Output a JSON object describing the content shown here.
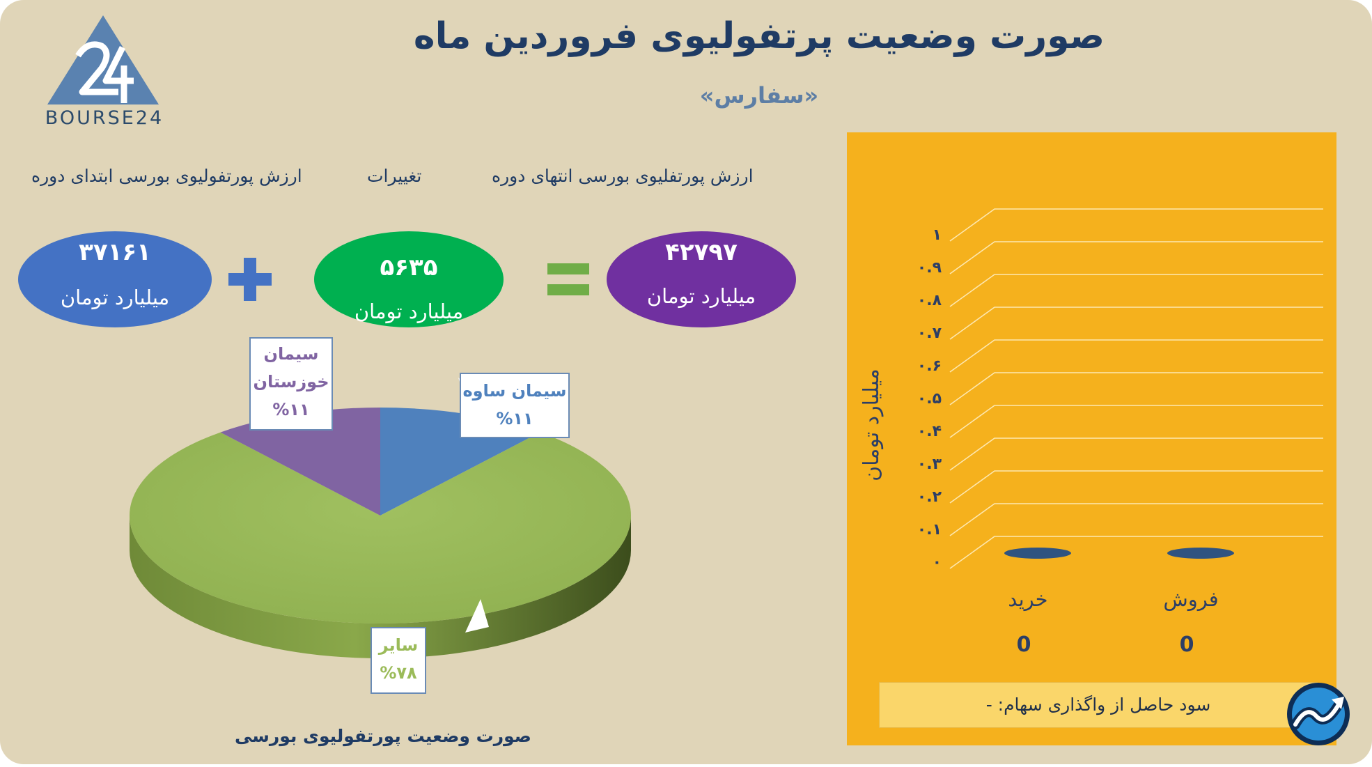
{
  "header": {
    "title": "صورت وضعیت پرتفولیوی فروردین ماه",
    "subtitle": "«سفارس»",
    "logo_text": "BOURSE24"
  },
  "summary": {
    "end_label": "ارزش پورتفلیوی بورسی انتهای دوره",
    "change_label": "تغییرات",
    "start_label": "ارزش پورتفولیوی بورسی ابتدای دوره",
    "end_value": "۴۲۷۹۷",
    "end_unit": "میلیارد تومان",
    "change_value": "۵۶۳۵",
    "change_unit": "میلیارد تومان",
    "start_value": "۳۷۱۶۱",
    "start_unit": "میلیارد تومان"
  },
  "colors": {
    "background": "#e0d5b8",
    "title": "#1f3b64",
    "start_ellipse": "#4472c4",
    "change_ellipse": "#00b050",
    "end_ellipse": "#7030a0",
    "plus_sign": "#4472c4",
    "equals_sign": "#70ad47",
    "panel": "#f5b11d",
    "pie_other": "#9bbb59",
    "pie_saveh": "#4f81bd",
    "pie_khuzestan": "#8064a2"
  },
  "pie_callouts": [
    {
      "line1": "سیمان ساوه",
      "line2": "%۱۱",
      "color": "#4f81bd"
    },
    {
      "line1": "سیمان",
      "line2": "خوزستان",
      "line3": "%۱۱",
      "color": "#8064a2"
    },
    {
      "line1": "سایر",
      "line2": "%۷۸",
      "color": "#9bbb59"
    }
  ],
  "profit_text": "سود حاصل از واگذاری سهام: -",
  "chart_data": [
    {
      "type": "pie",
      "title": "صورت وضعیت پورتفولیوی بورسی",
      "slices": [
        {
          "label": "سایر",
          "value": 78
        },
        {
          "label": "سیمان ساوه",
          "value": 11
        },
        {
          "label": "سیمان خوزستان",
          "value": 11
        }
      ]
    },
    {
      "type": "bar",
      "categories": [
        "فروش",
        "خرید"
      ],
      "values": [
        0,
        0
      ],
      "data_labels": [
        "0",
        "0"
      ],
      "ylabel": "میلیارد تومان",
      "ylim": [
        0,
        1
      ],
      "y_ticks": [
        "۰",
        "۰.۱",
        "۰.۲",
        "۰.۳",
        "۰.۴",
        "۰.۵",
        "۰.۶",
        "۰.۷",
        "۰.۸",
        "۰.۹",
        "۱"
      ],
      "grid": true
    }
  ]
}
